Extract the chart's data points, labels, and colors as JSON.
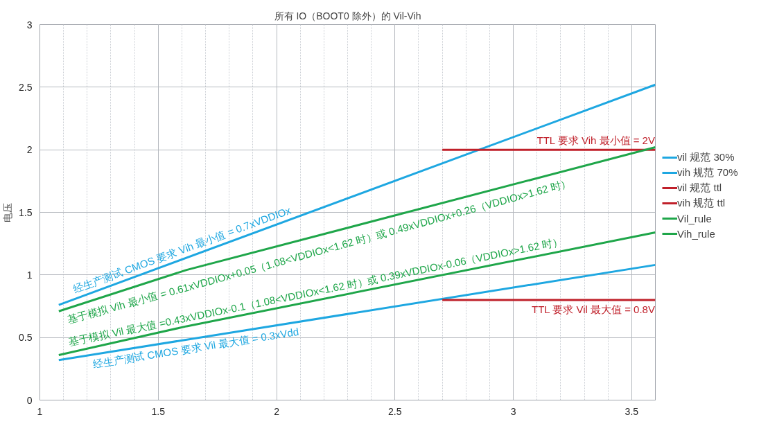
{
  "chart_data": {
    "type": "line",
    "title": "所有 IO（BOOT0 除外）的 Vil-Vih",
    "ylabel": "电压",
    "xlim": [
      1,
      3.6
    ],
    "ylim": [
      0,
      3
    ],
    "xticks": [
      1,
      1.5,
      2,
      2.5,
      3,
      3.5
    ],
    "yticks": [
      0,
      0.5,
      1,
      1.5,
      2,
      2.5,
      3
    ],
    "grid": true,
    "legend": "right",
    "marker": "none",
    "line_style": "solid",
    "series": [
      {
        "name": "vil 规范 30%",
        "color": "#1ea7e1",
        "x": [
          1.08,
          3.6
        ],
        "values": [
          0.32,
          1.08
        ]
      },
      {
        "name": "vih 规范 70%",
        "color": "#1ea7e1",
        "x": [
          1.08,
          3.6
        ],
        "values": [
          0.76,
          2.52
        ]
      },
      {
        "name": "vil 规范 ttl",
        "color": "#c0202a",
        "x": [
          2.7,
          3.6
        ],
        "values": [
          0.8,
          0.8
        ]
      },
      {
        "name": "vih 规范 ttl",
        "color": "#c0202a",
        "x": [
          2.7,
          3.6
        ],
        "values": [
          2,
          2
        ]
      },
      {
        "name": "Vil_rule",
        "color": "#1fa64a",
        "x": [
          1.08,
          1.62,
          3.6
        ],
        "values": [
          0.36,
          0.59,
          1.34
        ]
      },
      {
        "name": "Vih_rule",
        "color": "#1fa64a",
        "x": [
          1.08,
          1.62,
          3.6
        ],
        "values": [
          0.71,
          1.04,
          2.02
        ]
      }
    ],
    "annotations": [
      "经生产测试 CMOS 要求 Vih 最小值 = 0.7xVDDIOx",
      "基于模拟 Vih 最小值 = 0.61xVDDIOx+0.05（1.08<VDDIOx<1.62 时）或 0.49xVDDIOx+0.26（VDDIOx>1.62 时）",
      "基于模拟 Vil 最大值 =0.43xVDDIOx-0.1（1.08<VDDIOx<1.62 时）或 0.39xVDDIOx-0.06（VDDIOx>1.62 时）",
      "经生产测试 CMOS 要求 Vil 最大值 = 0.3xVdd",
      "TTL 要求 Vih 最小值 = 2V",
      "TTL 要求 Vil 最大值 = 0.8V"
    ]
  }
}
